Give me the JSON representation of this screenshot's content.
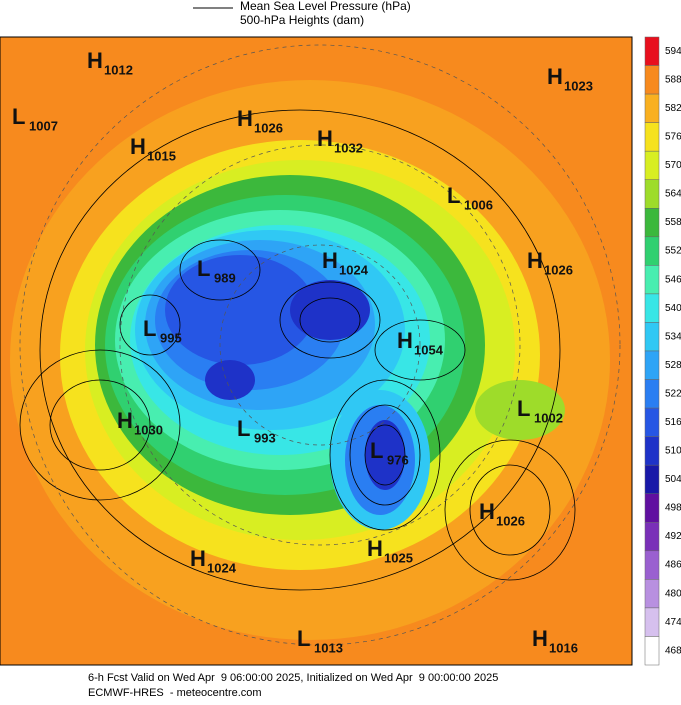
{
  "header": {
    "legend_line": "Mean Sea Level Pressure (hPa)",
    "legend_fill": "500-hPa Heights (dam)"
  },
  "centers": [
    {
      "type": "H",
      "value": 1012
    },
    {
      "type": "L",
      "value": 1007
    },
    {
      "type": "H",
      "value": 1026
    },
    {
      "type": "H",
      "value": 1032
    },
    {
      "type": "H",
      "value": 1015
    },
    {
      "type": "H",
      "value": 1023
    },
    {
      "type": "L",
      "value": 1006
    },
    {
      "type": "H",
      "value": 1024
    },
    {
      "type": "L",
      "value": 989
    },
    {
      "type": "H",
      "value": 1026
    },
    {
      "type": "L",
      "value": 995
    },
    {
      "type": "H",
      "value": 1054
    },
    {
      "type": "L",
      "value": 1002
    },
    {
      "type": "H",
      "value": 1030
    },
    {
      "type": "L",
      "value": 993
    },
    {
      "type": "L",
      "value": 976
    },
    {
      "type": "H",
      "value": 1026
    },
    {
      "type": "H",
      "value": 1025
    },
    {
      "type": "H",
      "value": 1024
    },
    {
      "type": "L",
      "value": 1013
    },
    {
      "type": "H",
      "value": 1016
    }
  ],
  "colorbar": {
    "ticks": [
      594,
      588,
      582,
      576,
      570,
      564,
      558,
      552,
      546,
      540,
      534,
      528,
      522,
      516,
      510,
      504,
      498,
      492,
      486,
      480,
      474,
      468
    ],
    "colors": [
      "#e8101e",
      "#f78a1e",
      "#f9b020",
      "#f6e21e",
      "#d8ee22",
      "#9edc2a",
      "#3cb83c",
      "#30d070",
      "#48eeb0",
      "#38e6e6",
      "#30c8f4",
      "#2ea4f6",
      "#2a7ef2",
      "#2656e4",
      "#1e32c8",
      "#1818a8",
      "#6010a0",
      "#7a30b8",
      "#9a60d0",
      "#b890e0",
      "#d6c0ee",
      "#ffffff"
    ]
  },
  "footer": {
    "line1": "6-h Fcst Valid on Wed Apr  9 06:00:00 2025, Initialized on Wed Apr  9 00:00:00 2025",
    "line2": "ECMWF-HRES  - meteocentre.com"
  }
}
